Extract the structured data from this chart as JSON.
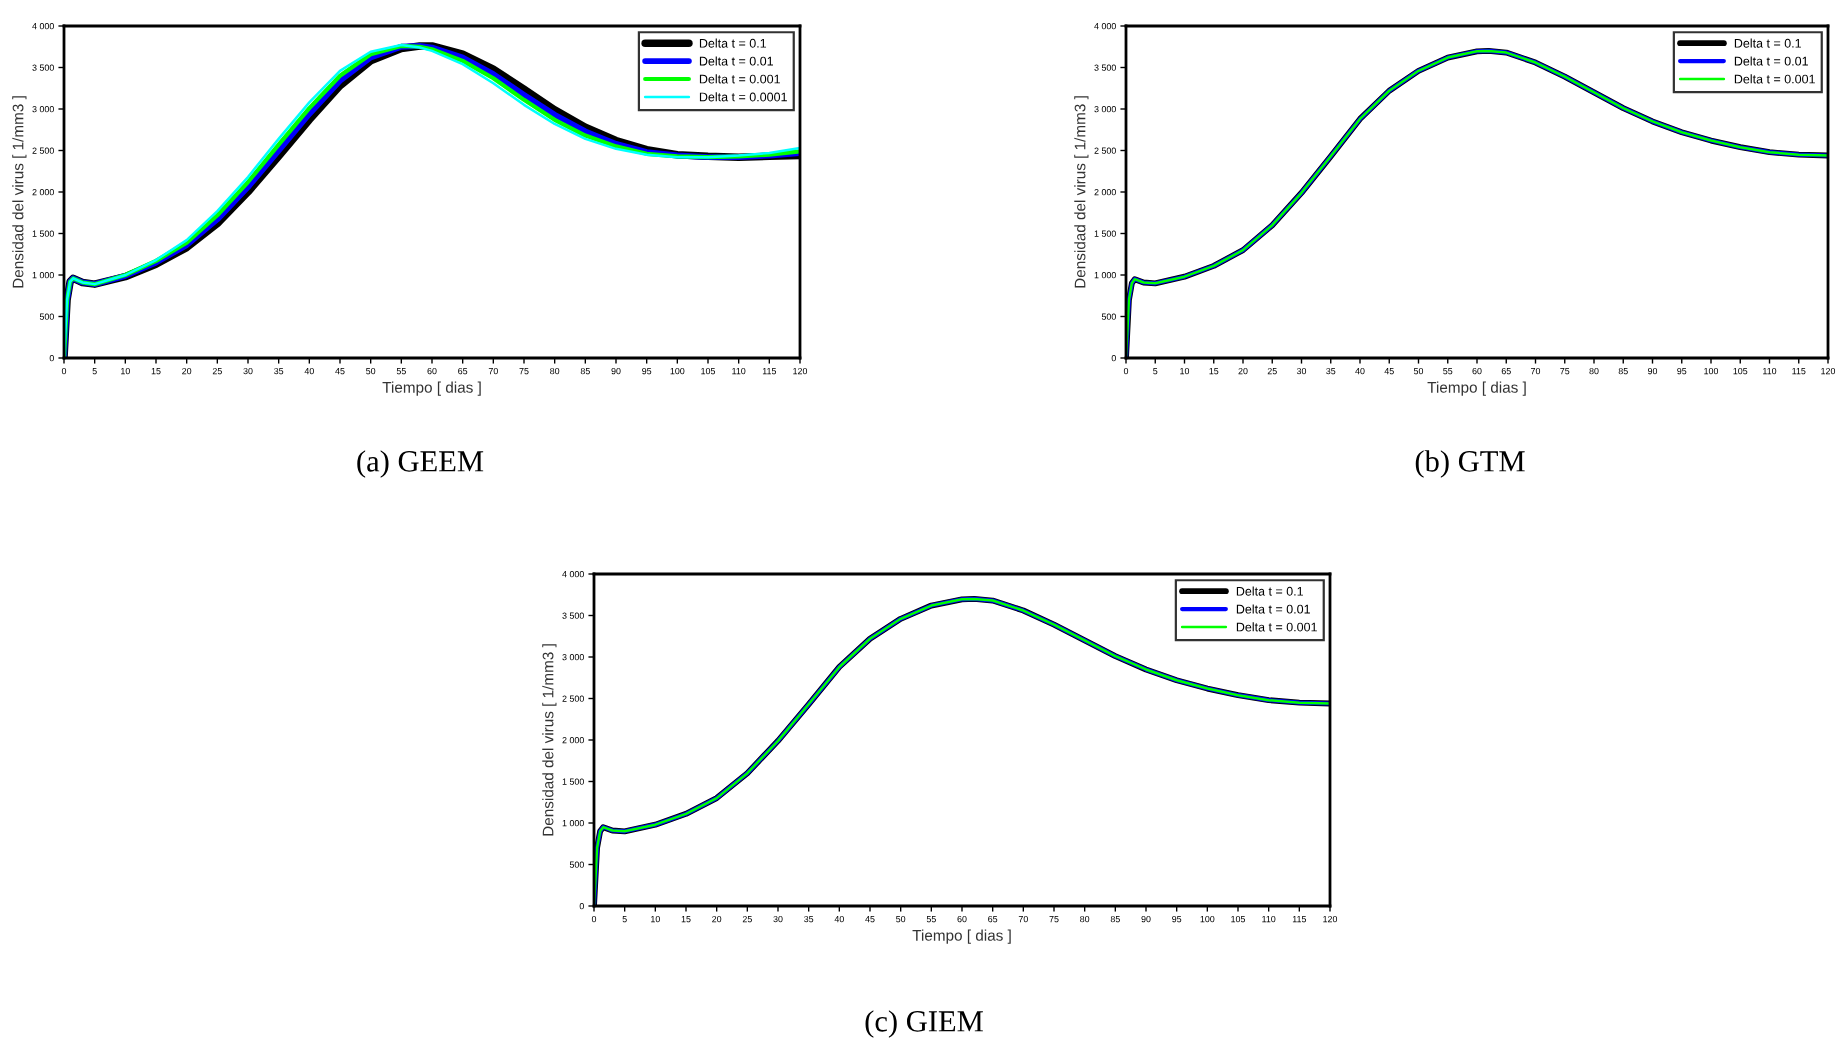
{
  "chart_data": [
    {
      "type": "line",
      "xlabel": "Tiempo [ dias ]",
      "ylabel": "Densidad del virus [ 1/mm3 ]",
      "annotations": [
        "(a) GEEM"
      ],
      "legend": "top right",
      "grid": false,
      "xlim": [
        0,
        120
      ],
      "ylim": [
        0,
        4000
      ],
      "xticks": [
        0,
        5,
        10,
        15,
        20,
        25,
        30,
        35,
        40,
        45,
        50,
        55,
        60,
        65,
        70,
        75,
        80,
        85,
        90,
        95,
        100,
        105,
        110,
        115,
        120
      ],
      "yticks": [
        0,
        500,
        {
          "value": 1000,
          "label": "1 000"
        },
        {
          "value": 1500,
          "label": "1 500"
        },
        {
          "value": 2000,
          "label": "2 000"
        },
        {
          "value": 2500,
          "label": "2 500"
        },
        {
          "value": 3000,
          "label": "3 000"
        },
        {
          "value": 3500,
          "label": "3 500"
        },
        {
          "value": 4000,
          "label": "4 000"
        }
      ],
      "x": [
        0,
        0.5,
        1,
        1.5,
        3,
        5,
        10,
        15,
        20,
        25,
        30,
        35,
        40,
        45,
        50,
        55,
        58,
        60,
        65,
        70,
        75,
        80,
        85,
        90,
        95,
        100,
        105,
        110,
        115,
        120
      ],
      "series": [
        {
          "name": "Delta t = 0.1",
          "color": "#000000",
          "values": [
            0,
            700,
            920,
            960,
            910,
            890,
            980,
            1130,
            1330,
            1620,
            2000,
            2430,
            2870,
            3280,
            3580,
            3730,
            3760,
            3760,
            3660,
            3480,
            3240,
            2990,
            2780,
            2620,
            2510,
            2450,
            2430,
            2420,
            2430,
            2440
          ]
        },
        {
          "name": "Delta t = 0.01",
          "color": "#0000ff",
          "values": [
            0,
            700,
            920,
            960,
            910,
            890,
            990,
            1150,
            1360,
            1670,
            2060,
            2500,
            2940,
            3340,
            3620,
            3750,
            3760,
            3740,
            3620,
            3420,
            3170,
            2930,
            2730,
            2580,
            2480,
            2440,
            2420,
            2420,
            2440,
            2470
          ]
        },
        {
          "name": "Delta t = 0.001",
          "color": "#00ff00",
          "values": [
            0,
            700,
            920,
            960,
            910,
            890,
            1000,
            1170,
            1390,
            1720,
            2120,
            2570,
            3010,
            3400,
            3660,
            3760,
            3750,
            3720,
            3580,
            3370,
            3110,
            2870,
            2680,
            2550,
            2460,
            2430,
            2420,
            2430,
            2450,
            2490
          ]
        },
        {
          "name": "Delta t = 0.0001",
          "color": "#00ffff",
          "values": [
            0,
            700,
            920,
            960,
            910,
            890,
            1000,
            1180,
            1420,
            1770,
            2180,
            2640,
            3080,
            3460,
            3690,
            3770,
            3740,
            3700,
            3540,
            3310,
            3050,
            2820,
            2640,
            2520,
            2450,
            2420,
            2420,
            2440,
            2470,
            2530
          ]
        }
      ]
    },
    {
      "type": "line",
      "xlabel": "Tiempo [ dias ]",
      "ylabel": "Densidad del virus [ 1/mm3 ]",
      "annotations": [
        "(b) GTM"
      ],
      "legend": "top right",
      "grid": false,
      "xlim": [
        0,
        120
      ],
      "ylim": [
        0,
        4000
      ],
      "xticks": [
        0,
        5,
        10,
        15,
        20,
        25,
        30,
        35,
        40,
        45,
        50,
        55,
        60,
        65,
        70,
        75,
        80,
        85,
        90,
        95,
        100,
        105,
        110,
        115,
        120
      ],
      "yticks": [
        0,
        500,
        {
          "value": 1000,
          "label": "1 000"
        },
        {
          "value": 1500,
          "label": "1 500"
        },
        {
          "value": 2000,
          "label": "2 000"
        },
        {
          "value": 2500,
          "label": "2 500"
        },
        {
          "value": 3000,
          "label": "3 000"
        },
        {
          "value": 3500,
          "label": "3 500"
        },
        {
          "value": 4000,
          "label": "4 000"
        }
      ],
      "x": [
        0,
        0.5,
        1,
        1.5,
        3,
        5,
        10,
        15,
        20,
        25,
        30,
        35,
        40,
        45,
        50,
        55,
        60,
        62,
        65,
        70,
        75,
        80,
        85,
        90,
        95,
        100,
        105,
        110,
        115,
        120
      ],
      "series": [
        {
          "name": "Delta t = 0.1",
          "color": "#000000",
          "values": [
            0,
            700,
            900,
            950,
            910,
            900,
            980,
            1110,
            1300,
            1600,
            1990,
            2430,
            2880,
            3220,
            3460,
            3620,
            3695,
            3700,
            3680,
            3560,
            3390,
            3200,
            3010,
            2850,
            2720,
            2620,
            2540,
            2480,
            2450,
            2440
          ]
        },
        {
          "name": "Delta t = 0.01",
          "color": "#0000ff",
          "values": [
            0,
            700,
            900,
            950,
            910,
            900,
            980,
            1110,
            1300,
            1600,
            1990,
            2430,
            2880,
            3220,
            3460,
            3620,
            3695,
            3700,
            3680,
            3560,
            3390,
            3200,
            3010,
            2850,
            2720,
            2620,
            2540,
            2480,
            2450,
            2440
          ]
        },
        {
          "name": "Delta t = 0.001",
          "color": "#00ff00",
          "values": [
            0,
            700,
            900,
            950,
            910,
            900,
            980,
            1110,
            1300,
            1600,
            1990,
            2430,
            2880,
            3220,
            3460,
            3620,
            3695,
            3700,
            3680,
            3560,
            3390,
            3200,
            3010,
            2850,
            2720,
            2620,
            2540,
            2480,
            2450,
            2440
          ]
        }
      ]
    },
    {
      "type": "line",
      "xlabel": "Tiempo [ dias ]",
      "ylabel": "Densidad del virus [ 1/mm3 ]",
      "annotations": [
        "(c) GIEM"
      ],
      "legend": "top right",
      "grid": false,
      "xlim": [
        0,
        120
      ],
      "ylim": [
        0,
        4000
      ],
      "xticks": [
        0,
        5,
        10,
        15,
        20,
        25,
        30,
        35,
        40,
        45,
        50,
        55,
        60,
        65,
        70,
        75,
        80,
        85,
        90,
        95,
        100,
        105,
        110,
        115,
        120
      ],
      "yticks": [
        0,
        500,
        {
          "value": 1000,
          "label": "1 000"
        },
        {
          "value": 1500,
          "label": "1 500"
        },
        {
          "value": 2000,
          "label": "2 000"
        },
        {
          "value": 2500,
          "label": "2 500"
        },
        {
          "value": 3000,
          "label": "3 000"
        },
        {
          "value": 3500,
          "label": "3 500"
        },
        {
          "value": 4000,
          "label": "4 000"
        }
      ],
      "x": [
        0,
        0.5,
        1,
        1.5,
        3,
        5,
        10,
        15,
        20,
        25,
        30,
        35,
        40,
        45,
        50,
        55,
        60,
        62,
        65,
        70,
        75,
        80,
        85,
        90,
        95,
        100,
        105,
        110,
        115,
        120
      ],
      "series": [
        {
          "name": "Delta t = 0.1",
          "color": "#000000",
          "values": [
            0,
            700,
            900,
            950,
            910,
            900,
            980,
            1110,
            1300,
            1600,
            1990,
            2430,
            2880,
            3220,
            3460,
            3620,
            3695,
            3700,
            3680,
            3560,
            3390,
            3200,
            3010,
            2850,
            2720,
            2620,
            2540,
            2480,
            2450,
            2440
          ]
        },
        {
          "name": "Delta t = 0.01",
          "color": "#0000ff",
          "values": [
            0,
            700,
            900,
            950,
            910,
            900,
            980,
            1110,
            1300,
            1600,
            1990,
            2430,
            2880,
            3220,
            3460,
            3620,
            3695,
            3700,
            3680,
            3560,
            3390,
            3200,
            3010,
            2850,
            2720,
            2620,
            2540,
            2480,
            2450,
            2440
          ]
        },
        {
          "name": "Delta t = 0.001",
          "color": "#00ff00",
          "values": [
            0,
            700,
            900,
            950,
            910,
            900,
            980,
            1110,
            1300,
            1600,
            1990,
            2430,
            2880,
            3220,
            3460,
            3620,
            3695,
            3700,
            3680,
            3560,
            3390,
            3200,
            3010,
            2850,
            2720,
            2620,
            2540,
            2480,
            2450,
            2440
          ]
        }
      ]
    }
  ]
}
